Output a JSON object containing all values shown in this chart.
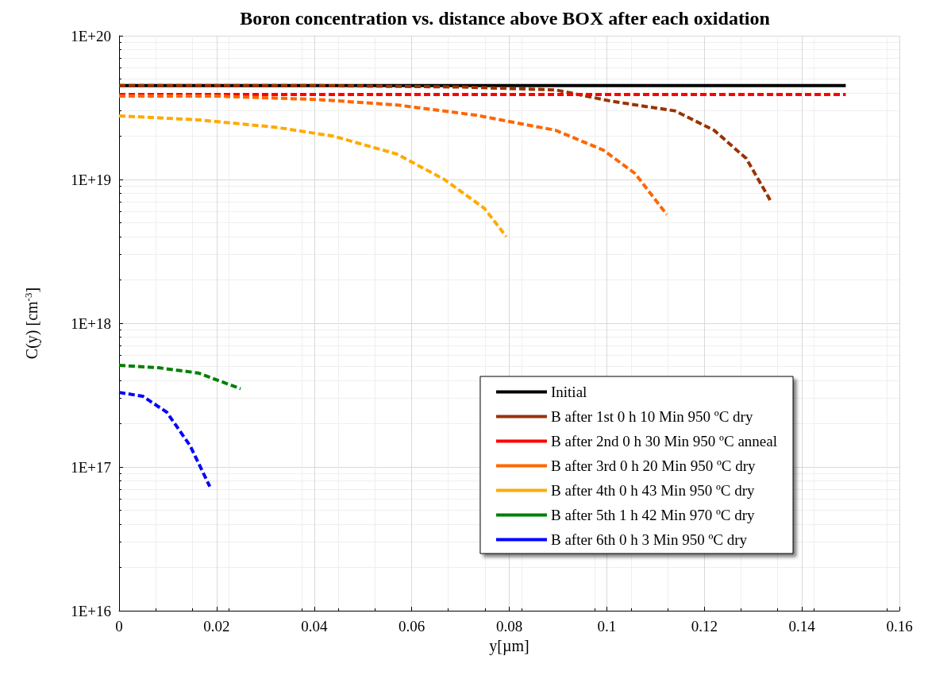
{
  "chart_data": {
    "type": "line",
    "title": "Boron concentration vs. distance above BOX after each oxidation",
    "xlabel": "y[µm]",
    "ylabel": "C(y) [cm$^{-3}$]",
    "log": "y",
    "grid": true,
    "legend": "bottom right",
    "marker": "none",
    "xlim": [
      0,
      0.16
    ],
    "xticks": [
      0,
      0.02,
      0.04,
      0.06,
      0.08,
      0.1,
      0.12,
      0.14,
      0.16
    ],
    "ylim": [
      1e+16,
      1e+20
    ],
    "yticks": [
      {
        "value": 1e+16,
        "label": "1E+16"
      },
      {
        "value": 1e+17,
        "label": "1E+17"
      },
      {
        "value": 1e+18,
        "label": "1E+18"
      },
      {
        "value": 1e+19,
        "label": "1E+19"
      },
      {
        "value": 1e+20,
        "label": "1E+20"
      }
    ],
    "series": [
      {
        "name": "Initial",
        "color": "#000000",
        "line_style": "solid",
        "x": [
          0,
          0.149
        ],
        "values": [
          4.5e+19,
          4.5e+19
        ]
      },
      {
        "name": "B after 1st 0 h 10 Min 950 ºC dry",
        "color": "#993300",
        "line_style": "dashed",
        "x": [
          0,
          0.04,
          0.07,
          0.0895,
          0.101,
          0.114,
          0.122,
          0.1286,
          0.1338
        ],
        "values": [
          4.5e+19,
          4.5e+19,
          4.4e+19,
          4.2e+19,
          3.5e+19,
          3e+19,
          2.2e+19,
          1.4e+19,
          6.9e+18
        ]
      },
      {
        "name": "B after 2nd 0 h 30 Min 950 ºC anneal",
        "color": "#ff0000",
        "line_style": "dashed",
        "x": [
          0,
          0.149
        ],
        "values": [
          3.9e+19,
          3.9e+19
        ]
      },
      {
        "name": "B after 3rd 0 h 20 Min 950 ºC dry",
        "color": "#ff6600",
        "line_style": "dashed",
        "x": [
          0,
          0.02,
          0.0407,
          0.057,
          0.0732,
          0.0895,
          0.0993,
          0.1058,
          0.1123
        ],
        "values": [
          3.8e+19,
          3.8e+19,
          3.6e+19,
          3.3e+19,
          2.8e+19,
          2.2e+19,
          1.6e+19,
          1.1e+19,
          5.7e+18
        ]
      },
      {
        "name": "B after 4th 0 h 43 Min 950 ºC dry",
        "color": "#ffaa00",
        "line_style": "dashed",
        "x": [
          0,
          0.0163,
          0.0325,
          0.044,
          0.057,
          0.0667,
          0.0749,
          0.0794
        ],
        "values": [
          2.77e+19,
          2.6e+19,
          2.3e+19,
          2e+19,
          1.5e+19,
          1e+19,
          6.3e+18,
          4e+18
        ]
      },
      {
        "name": "B after 5th 1 h 42 Min 970 ºC dry",
        "color": "#008000",
        "line_style": "dashed",
        "x": [
          0,
          0.0081,
          0.0163,
          0.0249
        ],
        "values": [
          5.1e+17,
          4.9e+17,
          4.5e+17,
          3.5e+17
        ]
      },
      {
        "name": "B after 6th 0 h 3 Min 950 ºC dry",
        "color": "#0000ff",
        "line_style": "dashed",
        "x": [
          0,
          0.0049,
          0.0098,
          0.0146,
          0.0186
        ],
        "values": [
          3.3e+17,
          3.1e+17,
          2.4e+17,
          1.4e+17,
          7.3e+16
        ]
      }
    ]
  }
}
